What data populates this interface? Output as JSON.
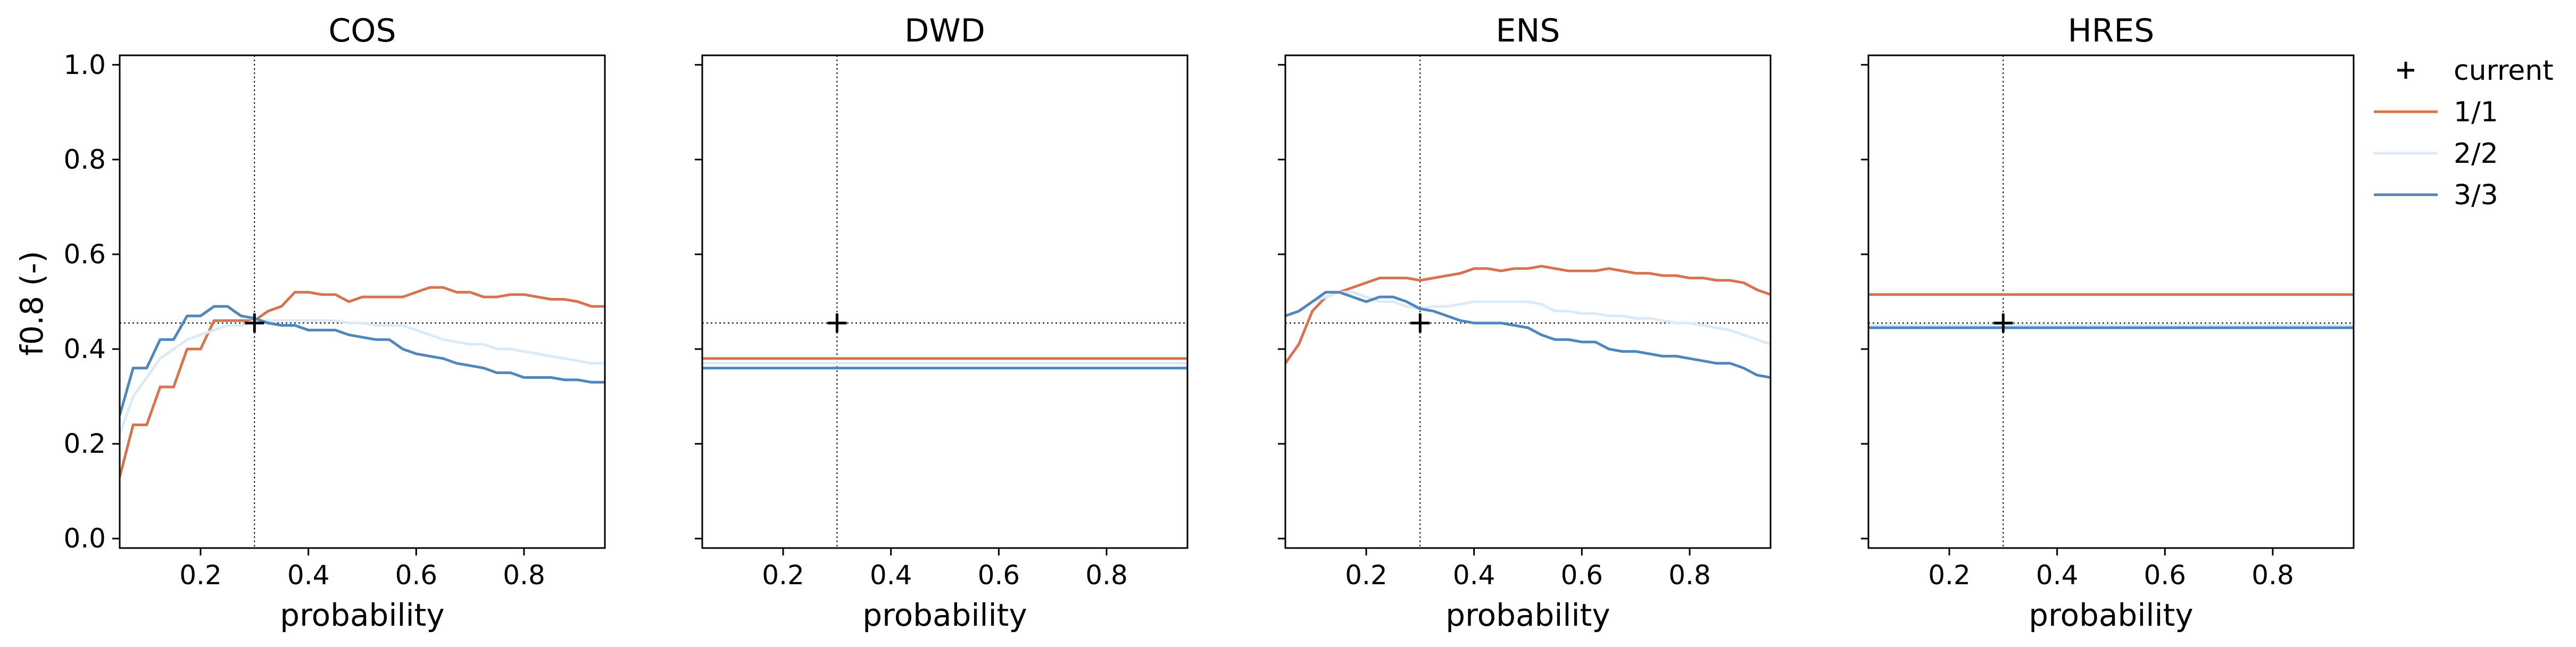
{
  "figure": {
    "ylabel": "f0.8 (-)",
    "legend_placement": "right",
    "legend": [
      {
        "label": "current",
        "marker": "+",
        "color": "#000000"
      },
      {
        "label": "1/1",
        "color": "#d8734f"
      },
      {
        "label": "2/2",
        "color": "#dce9f6"
      },
      {
        "label": "3/3",
        "color": "#4f86bb"
      }
    ]
  },
  "chart_data": [
    {
      "type": "line",
      "title": "COS",
      "xlabel": "probability",
      "ylabel": "f0.8 (-)",
      "xlim": [
        0.05,
        0.95
      ],
      "ylim": [
        -0.02,
        1.02
      ],
      "xticks": [
        0.2,
        0.4,
        0.6,
        0.8
      ],
      "yticks": [
        0.0,
        0.2,
        0.4,
        0.6,
        0.8,
        1.0
      ],
      "show_yticklabels": true,
      "grid": false,
      "reference": {
        "x": 0.3,
        "y": 0.455
      },
      "current": {
        "x": 0.3,
        "y": 0.455
      },
      "series": [
        {
          "name": "1/1",
          "color": "#d8734f",
          "x": [
            0.05,
            0.075,
            0.1,
            0.125,
            0.15,
            0.175,
            0.2,
            0.225,
            0.25,
            0.275,
            0.3,
            0.325,
            0.35,
            0.375,
            0.4,
            0.425,
            0.45,
            0.475,
            0.5,
            0.525,
            0.55,
            0.575,
            0.6,
            0.625,
            0.65,
            0.675,
            0.7,
            0.725,
            0.75,
            0.775,
            0.8,
            0.825,
            0.85,
            0.875,
            0.9,
            0.925,
            0.95
          ],
          "values": [
            0.13,
            0.24,
            0.24,
            0.32,
            0.32,
            0.4,
            0.4,
            0.46,
            0.46,
            0.46,
            0.46,
            0.48,
            0.49,
            0.52,
            0.52,
            0.515,
            0.515,
            0.5,
            0.51,
            0.51,
            0.51,
            0.51,
            0.52,
            0.53,
            0.53,
            0.52,
            0.52,
            0.51,
            0.51,
            0.515,
            0.515,
            0.51,
            0.505,
            0.505,
            0.5,
            0.49,
            0.49
          ]
        },
        {
          "name": "2/2",
          "color": "#dce9f6",
          "x": [
            0.05,
            0.075,
            0.1,
            0.125,
            0.15,
            0.175,
            0.2,
            0.225,
            0.25,
            0.275,
            0.3,
            0.325,
            0.35,
            0.375,
            0.4,
            0.425,
            0.45,
            0.475,
            0.5,
            0.525,
            0.55,
            0.575,
            0.6,
            0.625,
            0.65,
            0.675,
            0.7,
            0.725,
            0.75,
            0.775,
            0.8,
            0.825,
            0.85,
            0.875,
            0.9,
            0.925,
            0.95
          ],
          "values": [
            0.22,
            0.3,
            0.34,
            0.38,
            0.4,
            0.42,
            0.43,
            0.44,
            0.45,
            0.45,
            0.46,
            0.46,
            0.46,
            0.46,
            0.46,
            0.46,
            0.46,
            0.455,
            0.455,
            0.45,
            0.45,
            0.45,
            0.44,
            0.43,
            0.42,
            0.415,
            0.41,
            0.41,
            0.4,
            0.4,
            0.395,
            0.39,
            0.385,
            0.38,
            0.375,
            0.37,
            0.37
          ]
        },
        {
          "name": "3/3",
          "color": "#4f86bb",
          "x": [
            0.05,
            0.075,
            0.1,
            0.125,
            0.15,
            0.175,
            0.2,
            0.225,
            0.25,
            0.275,
            0.3,
            0.325,
            0.35,
            0.375,
            0.4,
            0.425,
            0.45,
            0.475,
            0.5,
            0.525,
            0.55,
            0.575,
            0.6,
            0.625,
            0.65,
            0.675,
            0.7,
            0.725,
            0.75,
            0.775,
            0.8,
            0.825,
            0.85,
            0.875,
            0.9,
            0.925,
            0.95
          ],
          "values": [
            0.26,
            0.36,
            0.36,
            0.42,
            0.42,
            0.47,
            0.47,
            0.49,
            0.49,
            0.47,
            0.465,
            0.455,
            0.45,
            0.45,
            0.44,
            0.44,
            0.44,
            0.43,
            0.425,
            0.42,
            0.42,
            0.4,
            0.39,
            0.385,
            0.38,
            0.37,
            0.365,
            0.36,
            0.35,
            0.35,
            0.34,
            0.34,
            0.34,
            0.335,
            0.335,
            0.33,
            0.33
          ]
        }
      ]
    },
    {
      "type": "line",
      "title": "DWD",
      "xlabel": "probability",
      "xlim": [
        0.05,
        0.95
      ],
      "ylim": [
        -0.02,
        1.02
      ],
      "xticks": [
        0.2,
        0.4,
        0.6,
        0.8
      ],
      "yticks": [
        0.0,
        0.2,
        0.4,
        0.6,
        0.8,
        1.0
      ],
      "show_yticklabels": false,
      "grid": false,
      "reference": {
        "x": 0.3,
        "y": 0.455
      },
      "current": {
        "x": 0.3,
        "y": 0.455
      },
      "series": [
        {
          "name": "1/1",
          "color": "#d8734f",
          "x": [
            0.05,
            0.95
          ],
          "values": [
            0.38,
            0.38
          ]
        },
        {
          "name": "2/2",
          "color": "#dce9f6",
          "x": [
            0.05,
            0.95
          ],
          "values": [
            0.37,
            0.37
          ]
        },
        {
          "name": "3/3",
          "color": "#4f86bb",
          "x": [
            0.05,
            0.95
          ],
          "values": [
            0.36,
            0.36
          ]
        }
      ]
    },
    {
      "type": "line",
      "title": "ENS",
      "xlabel": "probability",
      "xlim": [
        0.05,
        0.95
      ],
      "ylim": [
        -0.02,
        1.02
      ],
      "xticks": [
        0.2,
        0.4,
        0.6,
        0.8
      ],
      "yticks": [
        0.0,
        0.2,
        0.4,
        0.6,
        0.8,
        1.0
      ],
      "show_yticklabels": false,
      "grid": false,
      "reference": {
        "x": 0.3,
        "y": 0.455
      },
      "current": {
        "x": 0.3,
        "y": 0.455
      },
      "series": [
        {
          "name": "1/1",
          "color": "#d8734f",
          "x": [
            0.05,
            0.075,
            0.1,
            0.125,
            0.15,
            0.175,
            0.2,
            0.225,
            0.25,
            0.275,
            0.3,
            0.325,
            0.35,
            0.375,
            0.4,
            0.425,
            0.45,
            0.475,
            0.5,
            0.525,
            0.55,
            0.575,
            0.6,
            0.625,
            0.65,
            0.675,
            0.7,
            0.725,
            0.75,
            0.775,
            0.8,
            0.825,
            0.85,
            0.875,
            0.9,
            0.925,
            0.95
          ],
          "values": [
            0.37,
            0.41,
            0.48,
            0.51,
            0.52,
            0.53,
            0.54,
            0.55,
            0.55,
            0.55,
            0.545,
            0.55,
            0.555,
            0.56,
            0.57,
            0.57,
            0.565,
            0.57,
            0.57,
            0.575,
            0.57,
            0.565,
            0.565,
            0.565,
            0.57,
            0.565,
            0.56,
            0.56,
            0.555,
            0.555,
            0.55,
            0.55,
            0.545,
            0.545,
            0.54,
            0.525,
            0.515
          ]
        },
        {
          "name": "2/2",
          "color": "#dce9f6",
          "x": [
            0.05,
            0.075,
            0.1,
            0.125,
            0.15,
            0.175,
            0.2,
            0.225,
            0.25,
            0.275,
            0.3,
            0.325,
            0.35,
            0.375,
            0.4,
            0.425,
            0.45,
            0.475,
            0.5,
            0.525,
            0.55,
            0.575,
            0.6,
            0.625,
            0.65,
            0.675,
            0.7,
            0.725,
            0.75,
            0.775,
            0.8,
            0.825,
            0.85,
            0.875,
            0.9,
            0.925,
            0.95
          ],
          "values": [
            0.47,
            0.48,
            0.5,
            0.51,
            0.52,
            0.52,
            0.51,
            0.5,
            0.5,
            0.49,
            0.485,
            0.49,
            0.49,
            0.495,
            0.5,
            0.5,
            0.5,
            0.5,
            0.5,
            0.495,
            0.48,
            0.48,
            0.475,
            0.475,
            0.47,
            0.47,
            0.465,
            0.465,
            0.46,
            0.455,
            0.455,
            0.45,
            0.445,
            0.44,
            0.43,
            0.42,
            0.41
          ]
        },
        {
          "name": "3/3",
          "color": "#4f86bb",
          "x": [
            0.05,
            0.075,
            0.1,
            0.125,
            0.15,
            0.175,
            0.2,
            0.225,
            0.25,
            0.275,
            0.3,
            0.325,
            0.35,
            0.375,
            0.4,
            0.425,
            0.45,
            0.475,
            0.5,
            0.525,
            0.55,
            0.575,
            0.6,
            0.625,
            0.65,
            0.675,
            0.7,
            0.725,
            0.75,
            0.775,
            0.8,
            0.825,
            0.85,
            0.875,
            0.9,
            0.925,
            0.95
          ],
          "values": [
            0.47,
            0.48,
            0.5,
            0.52,
            0.52,
            0.51,
            0.5,
            0.51,
            0.51,
            0.5,
            0.485,
            0.48,
            0.47,
            0.46,
            0.455,
            0.455,
            0.455,
            0.45,
            0.445,
            0.43,
            0.42,
            0.42,
            0.415,
            0.415,
            0.4,
            0.395,
            0.395,
            0.39,
            0.385,
            0.385,
            0.38,
            0.375,
            0.37,
            0.37,
            0.36,
            0.345,
            0.34
          ]
        }
      ]
    },
    {
      "type": "line",
      "title": "HRES",
      "xlabel": "probability",
      "xlim": [
        0.05,
        0.95
      ],
      "ylim": [
        -0.02,
        1.02
      ],
      "xticks": [
        0.2,
        0.4,
        0.6,
        0.8
      ],
      "yticks": [
        0.0,
        0.2,
        0.4,
        0.6,
        0.8,
        1.0
      ],
      "show_yticklabels": false,
      "grid": false,
      "reference": {
        "x": 0.3,
        "y": 0.455
      },
      "current": {
        "x": 0.3,
        "y": 0.455
      },
      "series": [
        {
          "name": "1/1",
          "color": "#d8734f",
          "x": [
            0.05,
            0.95
          ],
          "values": [
            0.515,
            0.515
          ]
        },
        {
          "name": "2/2",
          "color": "#dce9f6",
          "x": [
            0.05,
            0.95
          ],
          "values": [
            0.45,
            0.45
          ]
        },
        {
          "name": "3/3",
          "color": "#4f86bb",
          "x": [
            0.05,
            0.95
          ],
          "values": [
            0.445,
            0.445
          ]
        }
      ]
    }
  ]
}
